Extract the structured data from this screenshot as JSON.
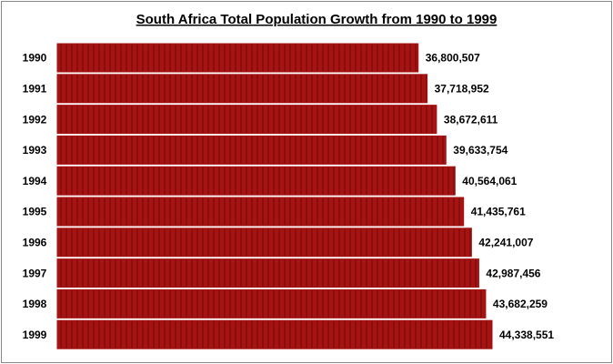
{
  "chart_data": {
    "type": "bar",
    "orientation": "horizontal",
    "title": "South Africa Total Population Growth from 1990 to 1999",
    "categories": [
      "1990",
      "1991",
      "1992",
      "1993",
      "1994",
      "1995",
      "1996",
      "1997",
      "1998",
      "1999"
    ],
    "values": [
      36800507,
      37718952,
      38672611,
      39633754,
      40564061,
      41435761,
      42241007,
      42987456,
      43682259,
      44338551
    ],
    "value_labels": [
      "36,800,507",
      "37,718,952",
      "38,672,611",
      "39,633,754",
      "40,564,061",
      "41,435,761",
      "42,241,007",
      "42,987,456",
      "43,682,259",
      "44,338,551"
    ],
    "color": "#a51313"
  }
}
